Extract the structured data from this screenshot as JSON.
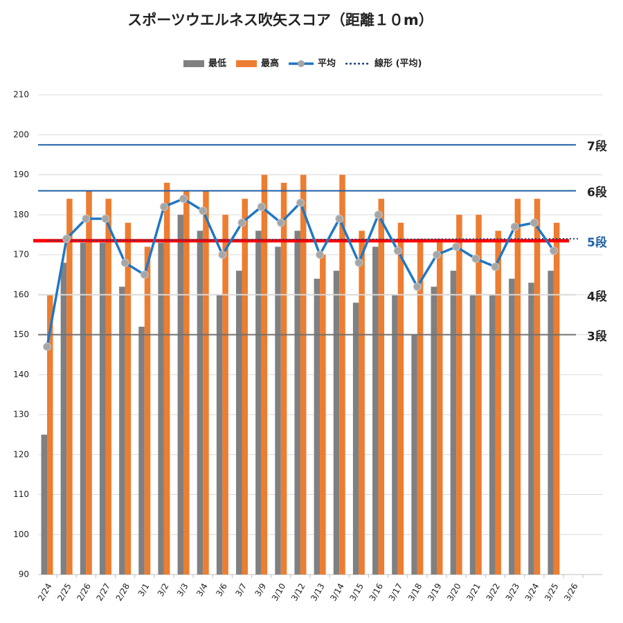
{
  "chart_data": {
    "type": "bar_line",
    "title": "スポーツウエルネス吹矢スコア（距離１０m）",
    "categories": [
      "2/24",
      "2/25",
      "2/26",
      "2/27",
      "2/28",
      "3/1",
      "3/2",
      "3/3",
      "3/4",
      "3/6",
      "3/7",
      "3/9",
      "3/10",
      "3/12",
      "3/13",
      "3/14",
      "3/15",
      "3/16",
      "3/17",
      "3/18",
      "3/19",
      "3/20",
      "3/21",
      "3/22",
      "3/23",
      "3/24",
      "3/25",
      "3/26"
    ],
    "series": [
      {
        "name": "最低",
        "color": "#808080",
        "kind": "bar",
        "values": [
          125,
          168,
          173,
          173,
          162,
          152,
          173,
          180,
          176,
          160,
          166,
          176,
          172,
          176,
          164,
          166,
          158,
          172,
          160,
          150,
          162,
          166,
          160,
          160,
          164,
          163,
          166,
          null
        ]
      },
      {
        "name": "最高",
        "color": "#ed7d31",
        "kind": "bar",
        "values": [
          160,
          184,
          186,
          184,
          178,
          172,
          188,
          186,
          186,
          180,
          184,
          190,
          188,
          190,
          170,
          190,
          176,
          184,
          178,
          174,
          174,
          180,
          180,
          176,
          184,
          184,
          178,
          null
        ]
      },
      {
        "name": "平均",
        "color": "#1f77c4",
        "kind": "line",
        "values": [
          147,
          174,
          179,
          179,
          168,
          165,
          182,
          184,
          181,
          170,
          178,
          182,
          178,
          183,
          170,
          179,
          168,
          180,
          171,
          162,
          170,
          172,
          169,
          167,
          177,
          178,
          171,
          null
        ]
      }
    ],
    "trend": {
      "name": "線形 (平均)",
      "color": "#1f3f7a",
      "start": 173.6,
      "end": 174
    },
    "reference_lines": [
      {
        "label": "7段",
        "value": 197.5,
        "color": "#1f5fa8",
        "label_color": "#222"
      },
      {
        "label": "6段",
        "value": 186,
        "color": "#1f5fa8",
        "label_color": "#222"
      },
      {
        "label": "5段",
        "value": 173.5,
        "color": "#ff0000",
        "label_color": "#1f5fa8"
      },
      {
        "label": "4段",
        "value": 160,
        "color": "#d9d9d9",
        "label_color": "#222"
      },
      {
        "label": "3段",
        "value": 150,
        "color": "#707070",
        "label_color": "#222"
      }
    ],
    "ylim": [
      90,
      210
    ],
    "yticks": [
      90,
      100,
      110,
      120,
      130,
      140,
      150,
      160,
      170,
      180,
      190,
      200,
      210
    ],
    "grid": true
  }
}
